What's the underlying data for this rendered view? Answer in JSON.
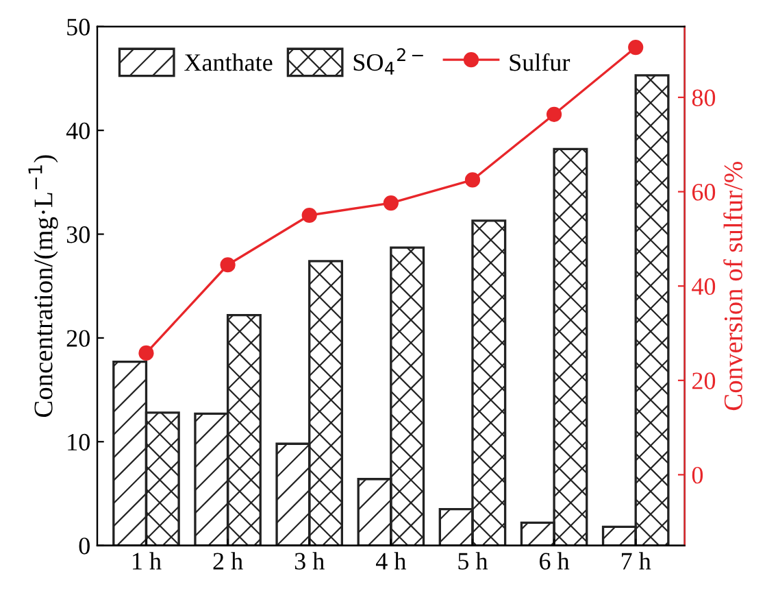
{
  "chart_data": {
    "type": "bar",
    "categories": [
      "1 h",
      "2 h",
      "3 h",
      "4 h",
      "5 h",
      "6 h",
      "7 h"
    ],
    "series": [
      {
        "name": "Xanthate",
        "color": "#222222",
        "values": [
          17.7,
          12.7,
          9.8,
          6.4,
          3.5,
          2.2,
          1.8
        ]
      },
      {
        "name": "SO$_{4}$$^{2−}$",
        "color": "#222222",
        "values": [
          12.8,
          22.2,
          27.4,
          28.7,
          31.3,
          38.2,
          45.3
        ]
      },
      {
        "name": "Sulfur",
        "type": "line",
        "axis": "y2",
        "color": "#e8262a",
        "marker": "circle",
        "line_style": "solid",
        "values": [
          25.8,
          44.5,
          55.0,
          57.6,
          62.5,
          76.4,
          90.6
        ]
      }
    ],
    "ylabel": "Concentration/(mg·L$^{−1}$)",
    "y2label": "Conversion of sulfur/%",
    "ylim": [
      0,
      50
    ],
    "yticks": [
      0,
      10,
      20,
      30,
      40,
      50
    ],
    "y2lim": [
      -15,
      95
    ],
    "y2ticks": [
      0,
      20,
      40,
      60,
      80
    ],
    "legend": "top left",
    "grid": false
  }
}
